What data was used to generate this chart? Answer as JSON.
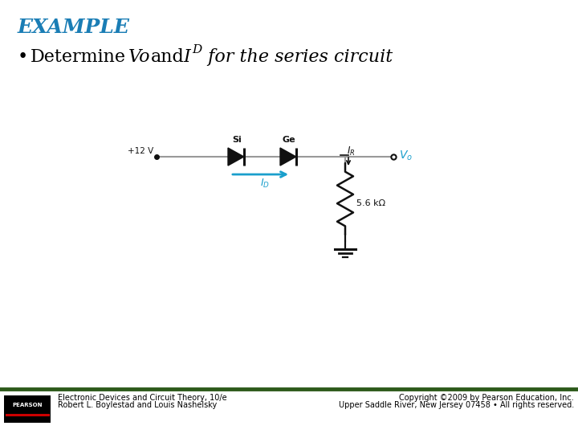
{
  "title": "EXAMPLE",
  "title_color": "#1a7db5",
  "title_fontsize": 18,
  "bullet_fontsize": 16,
  "background_color": "#ffffff",
  "footer_line_color": "#2d5a1b",
  "footer_text_left1": "Electronic Devices and Circuit Theory, 10/e",
  "footer_text_left2": "Robert L. Boylestad and Louis Nashelsky",
  "footer_text_right1": "Copyright ©2009 by Pearson Education, Inc.",
  "footer_text_right2": "Upper Saddle River, New Jersey 07458 • All rights reserved.",
  "footer_fontsize": 7,
  "circuit": {
    "v_source": "+12 V",
    "resistor": "5.6 kΩ",
    "diode1_label": "Si",
    "diode2_label": "Ge",
    "id_arrow_color": "#1a9fcc",
    "vo_color": "#1a9fcc",
    "wire_color": "#999999",
    "component_color": "#111111"
  }
}
